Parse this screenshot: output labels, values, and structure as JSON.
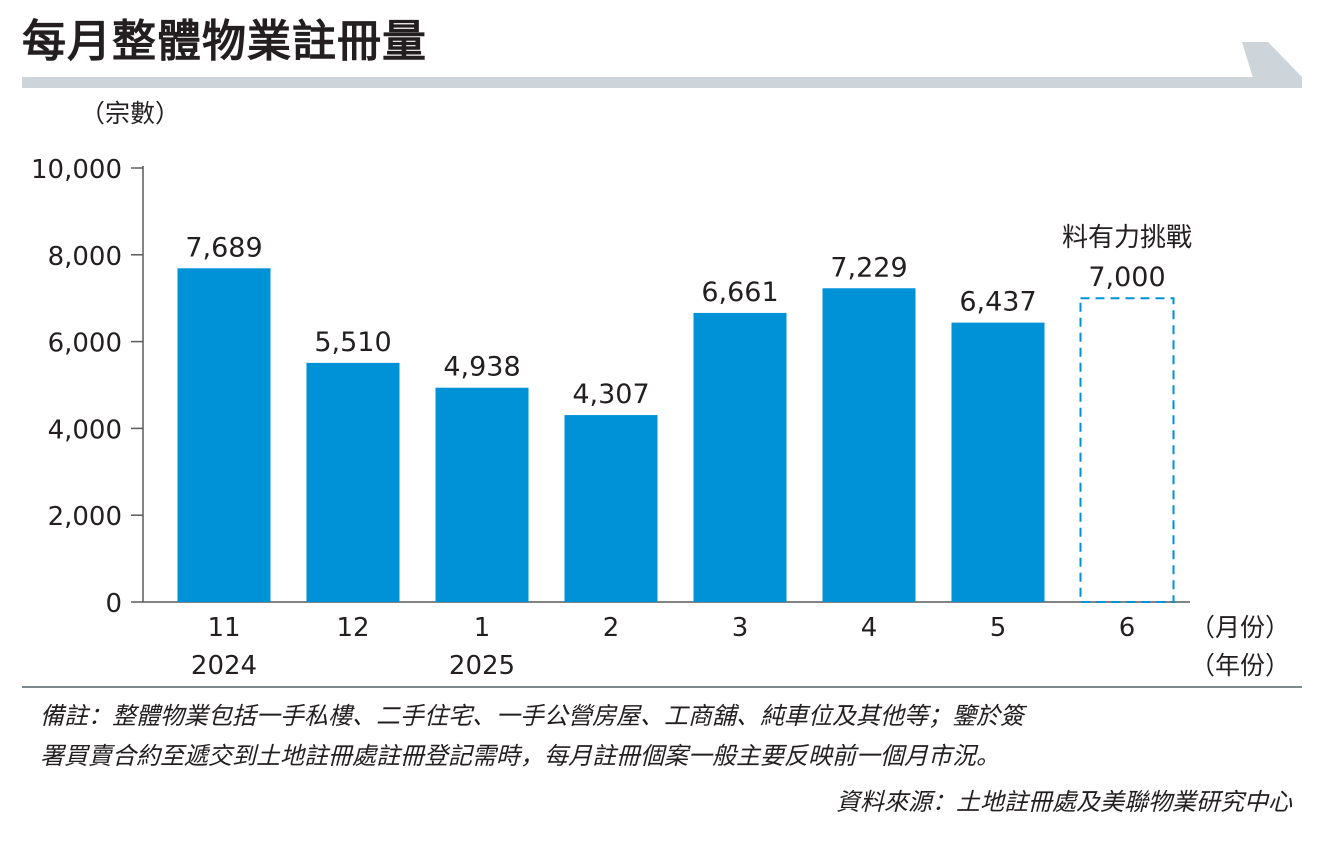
{
  "title": "每月整體物業註冊量",
  "chart_data": {
    "type": "bar",
    "title": "每月整體物業註冊量",
    "ylabel": "（宗數）",
    "xlabel": "（月份）",
    "xlabel2": "（年份）",
    "ylim": [
      0,
      10000
    ],
    "yticks": [
      "0",
      "2,000",
      "4,000",
      "6,000",
      "8,000",
      "10,000"
    ],
    "ytick_values": [
      0,
      2000,
      4000,
      6000,
      8000,
      10000
    ],
    "categories": [
      "11",
      "12",
      "1",
      "2",
      "3",
      "4",
      "5",
      "6"
    ],
    "years": [
      "2024",
      "",
      "2025",
      "",
      "",
      "",
      "",
      ""
    ],
    "values": [
      7689,
      5510,
      4938,
      4307,
      6661,
      7229,
      6437,
      7000
    ],
    "value_labels": [
      "7,689",
      "5,510",
      "4,938",
      "4,307",
      "6,661",
      "7,229",
      "6,437",
      "7,000"
    ],
    "forecast": [
      false,
      false,
      false,
      false,
      false,
      false,
      false,
      true
    ],
    "annotation": "料有力挑戰",
    "bar_color": "#0092d7",
    "forecast_color": "#0092d7",
    "grid": false
  },
  "notes": {
    "line1": "備註：整體物業包括一手私樓、二手住宅、一手公營房屋、工商舖、純車位及其他等；鑒於簽",
    "line2": "署買賣合約至遞交到土地註冊處註冊登記需時，每月註冊個案一般主要反映前一個月市況。",
    "source": "資料來源：土地註冊處及美聯物業研究中心"
  },
  "colors": {
    "banner": "#cdd5da",
    "divider": "#7d8a91",
    "axis": "#5a5a5a",
    "text": "#231f20"
  }
}
